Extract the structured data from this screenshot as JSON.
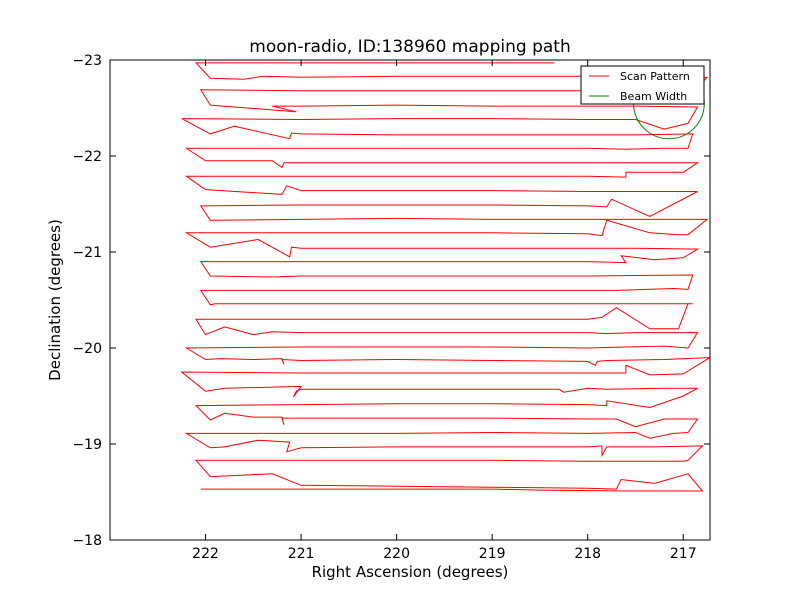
{
  "chart_data": {
    "type": "line",
    "title": "moon-radio, ID:138960 mapping path",
    "xlabel": "Right Ascension (degrees)",
    "ylabel": "Declination (degrees)",
    "xlim": [
      223.0,
      216.72
    ],
    "ylim": [
      -23.0,
      -18.0
    ],
    "xticks": [
      222,
      221,
      220,
      219,
      218,
      217
    ],
    "xtick_labels": [
      "222",
      "221",
      "220",
      "219",
      "218",
      "217"
    ],
    "yticks": [
      -18,
      -19,
      -20,
      -21,
      -22,
      -23
    ],
    "ytick_labels": [
      "−18",
      "−19",
      "−20",
      "−21",
      "−22",
      "−23"
    ],
    "grid": false,
    "legend_position": "top-right",
    "series": [
      {
        "name": "Scan Pattern",
        "color": "#ff0000",
        "points": [
          [
            222.05,
            -18.53
          ],
          [
            221.0,
            -18.53
          ],
          [
            220.0,
            -18.53
          ],
          [
            219.0,
            -18.53
          ],
          [
            218.5,
            -18.52
          ],
          [
            217.6,
            -18.51
          ],
          [
            216.8,
            -18.51
          ],
          [
            216.95,
            -18.69
          ],
          [
            217.3,
            -18.59
          ],
          [
            217.65,
            -18.63
          ],
          [
            217.7,
            -18.53
          ],
          [
            218.0,
            -18.54
          ],
          [
            219.0,
            -18.55
          ],
          [
            220.0,
            -18.56
          ],
          [
            221.0,
            -18.57
          ],
          [
            221.3,
            -18.69
          ],
          [
            221.95,
            -18.66
          ],
          [
            222.1,
            -18.83
          ],
          [
            221.0,
            -18.83
          ],
          [
            220.0,
            -18.83
          ],
          [
            219.0,
            -18.83
          ],
          [
            218.0,
            -18.82
          ],
          [
            217.0,
            -18.82
          ],
          [
            216.95,
            -18.83
          ],
          [
            216.8,
            -18.98
          ],
          [
            217.3,
            -18.97
          ],
          [
            217.8,
            -18.97
          ],
          [
            217.85,
            -18.88
          ],
          [
            217.85,
            -18.98
          ],
          [
            218.0,
            -18.97
          ],
          [
            219.0,
            -18.97
          ],
          [
            220.0,
            -18.97
          ],
          [
            221.0,
            -18.96
          ],
          [
            221.15,
            -18.92
          ],
          [
            221.12,
            -19.02
          ],
          [
            221.45,
            -19.04
          ],
          [
            221.8,
            -18.97
          ],
          [
            221.95,
            -18.96
          ],
          [
            222.2,
            -19.11
          ],
          [
            221.0,
            -19.11
          ],
          [
            220.0,
            -19.11
          ],
          [
            219.0,
            -19.12
          ],
          [
            218.0,
            -19.11
          ],
          [
            217.5,
            -19.12
          ],
          [
            217.35,
            -19.06
          ],
          [
            217.1,
            -19.11
          ],
          [
            216.95,
            -19.12
          ],
          [
            216.85,
            -19.26
          ],
          [
            217.2,
            -19.26
          ],
          [
            217.5,
            -19.18
          ],
          [
            217.7,
            -19.26
          ],
          [
            218.0,
            -19.26
          ],
          [
            219.0,
            -19.27
          ],
          [
            220.0,
            -19.27
          ],
          [
            221.0,
            -19.27
          ],
          [
            221.2,
            -19.27
          ],
          [
            221.18,
            -19.2
          ],
          [
            221.2,
            -19.28
          ],
          [
            221.5,
            -19.28
          ],
          [
            221.8,
            -19.32
          ],
          [
            221.95,
            -19.25
          ],
          [
            222.1,
            -19.4
          ],
          [
            221.0,
            -19.41
          ],
          [
            220.0,
            -19.42
          ],
          [
            219.0,
            -19.42
          ],
          [
            218.0,
            -19.41
          ],
          [
            217.8,
            -19.4
          ],
          [
            217.8,
            -19.45
          ],
          [
            217.35,
            -19.38
          ],
          [
            217.0,
            -19.5
          ],
          [
            216.85,
            -19.58
          ],
          [
            217.2,
            -19.58
          ],
          [
            217.8,
            -19.57
          ],
          [
            218.0,
            -19.58
          ],
          [
            218.25,
            -19.54
          ],
          [
            218.3,
            -19.57
          ],
          [
            219.0,
            -19.57
          ],
          [
            220.0,
            -19.57
          ],
          [
            221.0,
            -19.57
          ],
          [
            221.05,
            -19.55
          ],
          [
            221.08,
            -19.49
          ],
          [
            221.0,
            -19.6
          ],
          [
            221.8,
            -19.58
          ],
          [
            222.0,
            -19.55
          ],
          [
            222.25,
            -19.75
          ],
          [
            221.0,
            -19.74
          ],
          [
            220.0,
            -19.74
          ],
          [
            219.0,
            -19.74
          ],
          [
            218.0,
            -19.74
          ],
          [
            217.6,
            -19.74
          ],
          [
            217.6,
            -19.82
          ],
          [
            217.35,
            -19.72
          ],
          [
            217.0,
            -19.73
          ],
          [
            216.72,
            -19.9
          ],
          [
            217.2,
            -19.88
          ],
          [
            217.8,
            -19.87
          ],
          [
            217.9,
            -19.86
          ],
          [
            217.92,
            -19.82
          ],
          [
            218.0,
            -19.86
          ],
          [
            219.0,
            -19.87
          ],
          [
            220.0,
            -19.88
          ],
          [
            221.0,
            -19.87
          ],
          [
            221.2,
            -19.88
          ],
          [
            221.18,
            -19.83
          ],
          [
            221.2,
            -19.89
          ],
          [
            221.5,
            -19.88
          ],
          [
            221.85,
            -19.89
          ],
          [
            222.0,
            -19.88
          ],
          [
            222.2,
            -20.0
          ],
          [
            221.0,
            -20.01
          ],
          [
            220.0,
            -20.01
          ],
          [
            219.0,
            -20.01
          ],
          [
            218.0,
            -20.0
          ],
          [
            217.6,
            -20.01
          ],
          [
            217.2,
            -20.02
          ],
          [
            216.95,
            -20.0
          ],
          [
            216.85,
            -20.16
          ],
          [
            217.2,
            -20.16
          ],
          [
            217.5,
            -20.16
          ],
          [
            217.8,
            -20.15
          ],
          [
            218.0,
            -20.16
          ],
          [
            219.0,
            -20.16
          ],
          [
            220.0,
            -20.16
          ],
          [
            221.0,
            -20.16
          ],
          [
            221.3,
            -20.17
          ],
          [
            221.5,
            -20.14
          ],
          [
            221.8,
            -20.22
          ],
          [
            222.0,
            -20.14
          ],
          [
            222.1,
            -20.3
          ],
          [
            221.0,
            -20.3
          ],
          [
            220.0,
            -20.3
          ],
          [
            219.0,
            -20.3
          ],
          [
            218.0,
            -20.3
          ],
          [
            217.85,
            -20.32
          ],
          [
            217.7,
            -20.42
          ],
          [
            217.35,
            -20.2
          ],
          [
            217.05,
            -20.2
          ],
          [
            216.95,
            -20.46
          ],
          [
            216.9,
            -20.46
          ],
          [
            218.0,
            -20.46
          ],
          [
            219.0,
            -20.46
          ],
          [
            220.0,
            -20.46
          ],
          [
            221.0,
            -20.46
          ],
          [
            221.9,
            -20.46
          ],
          [
            221.95,
            -20.45
          ],
          [
            222.05,
            -20.6
          ],
          [
            221.0,
            -20.6
          ],
          [
            220.0,
            -20.6
          ],
          [
            219.0,
            -20.6
          ],
          [
            218.0,
            -20.6
          ],
          [
            217.7,
            -20.6
          ],
          [
            217.1,
            -20.62
          ],
          [
            216.95,
            -20.61
          ],
          [
            216.9,
            -20.76
          ],
          [
            218.0,
            -20.75
          ],
          [
            219.0,
            -20.75
          ],
          [
            220.0,
            -20.75
          ],
          [
            221.0,
            -20.75
          ],
          [
            221.3,
            -20.74
          ],
          [
            221.95,
            -20.75
          ],
          [
            222.05,
            -20.9
          ],
          [
            221.0,
            -20.9
          ],
          [
            220.0,
            -20.9
          ],
          [
            219.0,
            -20.9
          ],
          [
            218.0,
            -20.9
          ],
          [
            217.6,
            -20.89
          ],
          [
            217.65,
            -20.96
          ],
          [
            217.3,
            -20.92
          ],
          [
            217.0,
            -20.94
          ],
          [
            216.85,
            -21.03
          ],
          [
            217.5,
            -21.04
          ],
          [
            218.0,
            -21.04
          ],
          [
            219.0,
            -21.04
          ],
          [
            220.0,
            -21.04
          ],
          [
            221.0,
            -21.04
          ],
          [
            221.1,
            -21.05
          ],
          [
            221.12,
            -20.95
          ],
          [
            221.45,
            -21.13
          ],
          [
            221.95,
            -21.05
          ],
          [
            222.2,
            -21.2
          ],
          [
            221.0,
            -21.2
          ],
          [
            220.0,
            -21.2
          ],
          [
            219.0,
            -21.2
          ],
          [
            218.0,
            -21.19
          ],
          [
            217.85,
            -21.17
          ],
          [
            217.8,
            -21.33
          ],
          [
            217.35,
            -21.2
          ],
          [
            217.05,
            -21.18
          ],
          [
            216.95,
            -21.18
          ],
          [
            216.75,
            -21.34
          ],
          [
            217.5,
            -21.34
          ],
          [
            218.0,
            -21.34
          ],
          [
            219.0,
            -21.34
          ],
          [
            220.0,
            -21.35
          ],
          [
            221.0,
            -21.34
          ],
          [
            221.95,
            -21.33
          ],
          [
            222.05,
            -21.48
          ],
          [
            221.0,
            -21.49
          ],
          [
            220.0,
            -21.49
          ],
          [
            219.0,
            -21.49
          ],
          [
            218.0,
            -21.48
          ],
          [
            217.8,
            -21.47
          ],
          [
            217.75,
            -21.55
          ],
          [
            217.35,
            -21.37
          ],
          [
            216.85,
            -21.63
          ],
          [
            217.5,
            -21.63
          ],
          [
            218.0,
            -21.63
          ],
          [
            219.0,
            -21.64
          ],
          [
            220.0,
            -21.64
          ],
          [
            221.0,
            -21.64
          ],
          [
            221.15,
            -21.69
          ],
          [
            221.2,
            -21.6
          ],
          [
            222.0,
            -21.65
          ],
          [
            222.2,
            -21.79
          ],
          [
            221.0,
            -21.79
          ],
          [
            220.0,
            -21.79
          ],
          [
            219.0,
            -21.79
          ],
          [
            218.0,
            -21.79
          ],
          [
            217.6,
            -21.78
          ],
          [
            217.6,
            -21.83
          ],
          [
            217.0,
            -21.83
          ],
          [
            216.85,
            -21.93
          ],
          [
            217.5,
            -21.93
          ],
          [
            218.0,
            -21.93
          ],
          [
            219.0,
            -21.93
          ],
          [
            220.0,
            -21.93
          ],
          [
            221.0,
            -21.93
          ],
          [
            221.18,
            -21.93
          ],
          [
            221.2,
            -21.88
          ],
          [
            221.3,
            -21.95
          ],
          [
            222.0,
            -21.95
          ],
          [
            222.2,
            -22.08
          ],
          [
            221.0,
            -22.08
          ],
          [
            220.0,
            -22.08
          ],
          [
            219.0,
            -22.08
          ],
          [
            218.0,
            -22.08
          ],
          [
            217.6,
            -22.07
          ],
          [
            217.2,
            -22.08
          ],
          [
            216.95,
            -22.08
          ],
          [
            216.9,
            -22.23
          ],
          [
            217.5,
            -22.22
          ],
          [
            218.0,
            -22.22
          ],
          [
            219.0,
            -22.22
          ],
          [
            220.0,
            -22.22
          ],
          [
            221.0,
            -22.23
          ],
          [
            221.1,
            -22.24
          ],
          [
            221.12,
            -22.18
          ],
          [
            221.7,
            -22.31
          ],
          [
            221.95,
            -22.23
          ],
          [
            222.25,
            -22.39
          ],
          [
            221.0,
            -22.38
          ],
          [
            220.0,
            -22.39
          ],
          [
            219.0,
            -22.39
          ],
          [
            218.0,
            -22.38
          ],
          [
            217.5,
            -22.38
          ],
          [
            217.2,
            -22.28
          ],
          [
            216.95,
            -22.34
          ],
          [
            216.85,
            -22.51
          ],
          [
            217.5,
            -22.52
          ],
          [
            218.0,
            -22.52
          ],
          [
            219.0,
            -22.52
          ],
          [
            220.0,
            -22.53
          ],
          [
            221.0,
            -22.52
          ],
          [
            221.3,
            -22.52
          ],
          [
            221.05,
            -22.46
          ],
          [
            221.95,
            -22.53
          ],
          [
            222.05,
            -22.69
          ],
          [
            221.0,
            -22.68
          ],
          [
            220.0,
            -22.68
          ],
          [
            219.0,
            -22.68
          ],
          [
            218.0,
            -22.68
          ],
          [
            217.5,
            -22.68
          ],
          [
            217.0,
            -22.67
          ],
          [
            216.9,
            -22.66
          ],
          [
            216.75,
            -22.82
          ],
          [
            217.5,
            -22.83
          ],
          [
            218.0,
            -22.83
          ],
          [
            219.0,
            -22.83
          ],
          [
            220.0,
            -22.83
          ],
          [
            221.0,
            -22.82
          ],
          [
            221.4,
            -22.83
          ],
          [
            221.6,
            -22.8
          ],
          [
            221.95,
            -22.81
          ],
          [
            222.1,
            -22.97
          ],
          [
            221.0,
            -22.97
          ],
          [
            220.0,
            -22.97
          ],
          [
            219.0,
            -22.97
          ],
          [
            218.35,
            -22.97
          ]
        ]
      },
      {
        "name": "Beam Width",
        "color": "#008000",
        "circle": {
          "center": [
            217.15,
            -22.55
          ],
          "radius": 0.37
        }
      }
    ],
    "legend": [
      {
        "label": "Scan Pattern",
        "color": "#ff0000"
      },
      {
        "label": "Beam Width",
        "color": "#008000"
      }
    ]
  }
}
